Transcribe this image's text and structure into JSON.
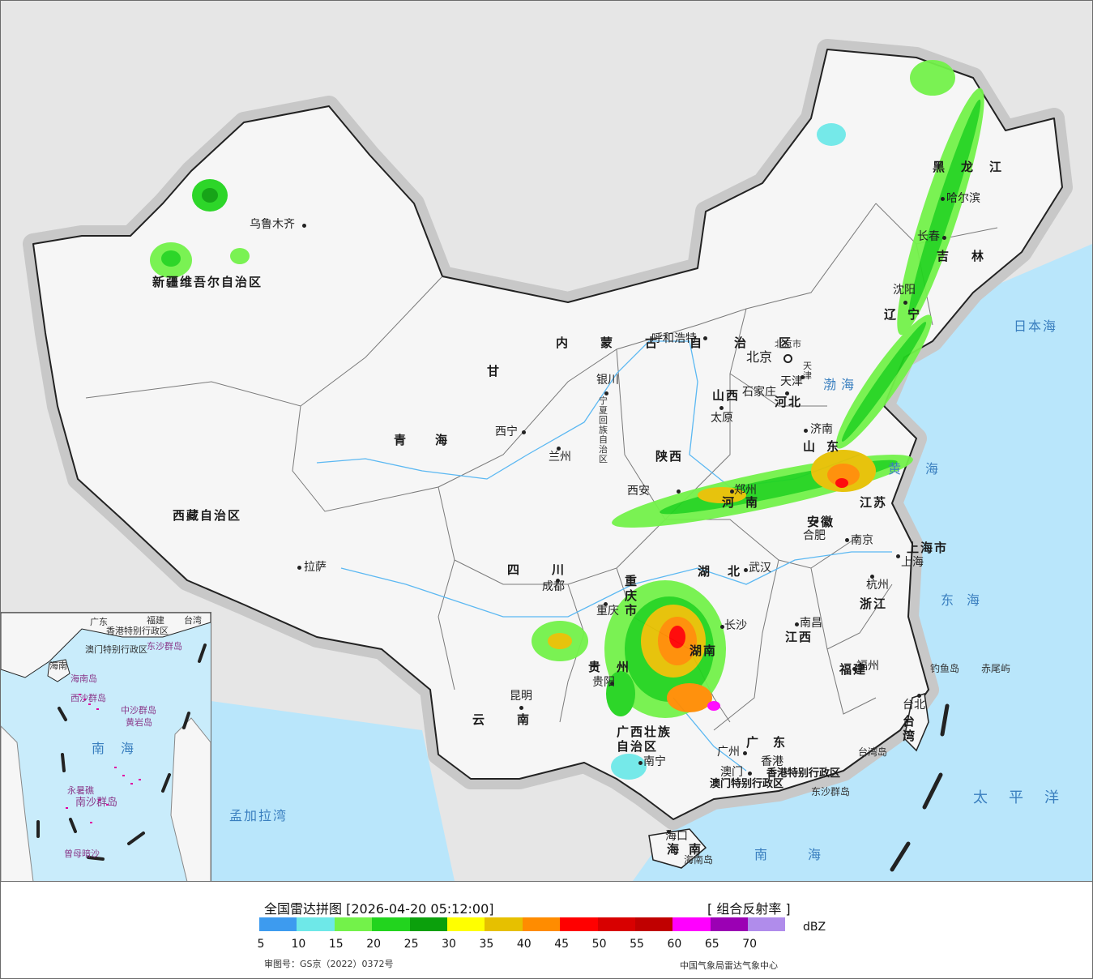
{
  "legend": {
    "title": "全国雷达拼图 [2026-04-20 05:12:00]",
    "product": "[ 组合反射率 ]",
    "unit": "dBZ",
    "approval": "审图号：GS京（2022）0372号",
    "source": "中国气象局雷达气象中心",
    "ticks": [
      "5",
      "10",
      "15",
      "20",
      "25",
      "30",
      "35",
      "40",
      "45",
      "50",
      "55",
      "60",
      "65",
      "70"
    ],
    "colors": [
      "#3d9bef",
      "#6ee8e8",
      "#73f24a",
      "#22d41e",
      "#0ba00c",
      "#ffff00",
      "#e6c000",
      "#ff8c00",
      "#ff0000",
      "#d80000",
      "#c00000",
      "#ff00ff",
      "#9b00b4",
      "#b08ceb"
    ]
  },
  "colors": {
    "sea": "#b9e6fb",
    "land": "#f7f7f7",
    "outside": "#e6e6e6",
    "border": "#222222"
  },
  "map": {
    "provinces": [
      {
        "name": "新疆维吾尔自治区"
      },
      {
        "name": "西藏自治区"
      },
      {
        "name": "青海"
      },
      {
        "name": "甘"
      },
      {
        "name": "内蒙古自治区"
      },
      {
        "name": "四川"
      },
      {
        "name": "云南"
      },
      {
        "name": "黑龙江"
      },
      {
        "name": "吉林"
      },
      {
        "name": "辽宁"
      },
      {
        "name": "河北"
      },
      {
        "name": "山西"
      },
      {
        "name": "陕西"
      },
      {
        "name": "河南"
      },
      {
        "name": "山东"
      },
      {
        "name": "江苏"
      },
      {
        "name": "安徽"
      },
      {
        "name": "湖北"
      },
      {
        "name": "湖南"
      },
      {
        "name": "江西"
      },
      {
        "name": "浙江"
      },
      {
        "name": "福建"
      },
      {
        "name": "广东"
      },
      {
        "name": "广西壮族自治区"
      },
      {
        "name": "贵州"
      },
      {
        "name": "重庆市"
      },
      {
        "name": "海南"
      },
      {
        "name": "台湾"
      },
      {
        "name": "宁夏回族自治区"
      },
      {
        "name": "上海市"
      },
      {
        "name": "天津"
      },
      {
        "name": "北京市"
      }
    ],
    "cities": [
      "乌鲁木齐",
      "拉萨",
      "西宁",
      "兰州",
      "银川",
      "呼和浩特",
      "北京",
      "天津",
      "石家庄",
      "太原",
      "济南",
      "西安",
      "郑州",
      "合肥",
      "南京",
      "上海",
      "杭州",
      "武汉",
      "长沙",
      "南昌",
      "福州",
      "台北",
      "重庆",
      "成都",
      "贵阳",
      "昆明",
      "南宁",
      "广州",
      "香港",
      "澳门",
      "海口",
      "哈尔滨",
      "长春",
      "沈阳"
    ],
    "seas": [
      "日本海",
      "渤海",
      "黄海",
      "东海",
      "太平洋",
      "南海",
      "孟加拉湾"
    ],
    "islands": [
      "钓鱼岛",
      "赤尾屿",
      "台湾岛",
      "东沙群岛",
      "海南岛",
      "香港特别行政区",
      "澳门特别行政区"
    ]
  },
  "inset": {
    "labels": [
      "广东",
      "福建",
      "台湾",
      "香港特别行政区",
      "澳门特别行政区",
      "东沙群岛",
      "海南",
      "海南岛",
      "西沙群岛",
      "中沙群岛",
      "黄岩岛",
      "南海",
      "永暑礁",
      "南沙群岛",
      "曾母暗沙"
    ]
  }
}
